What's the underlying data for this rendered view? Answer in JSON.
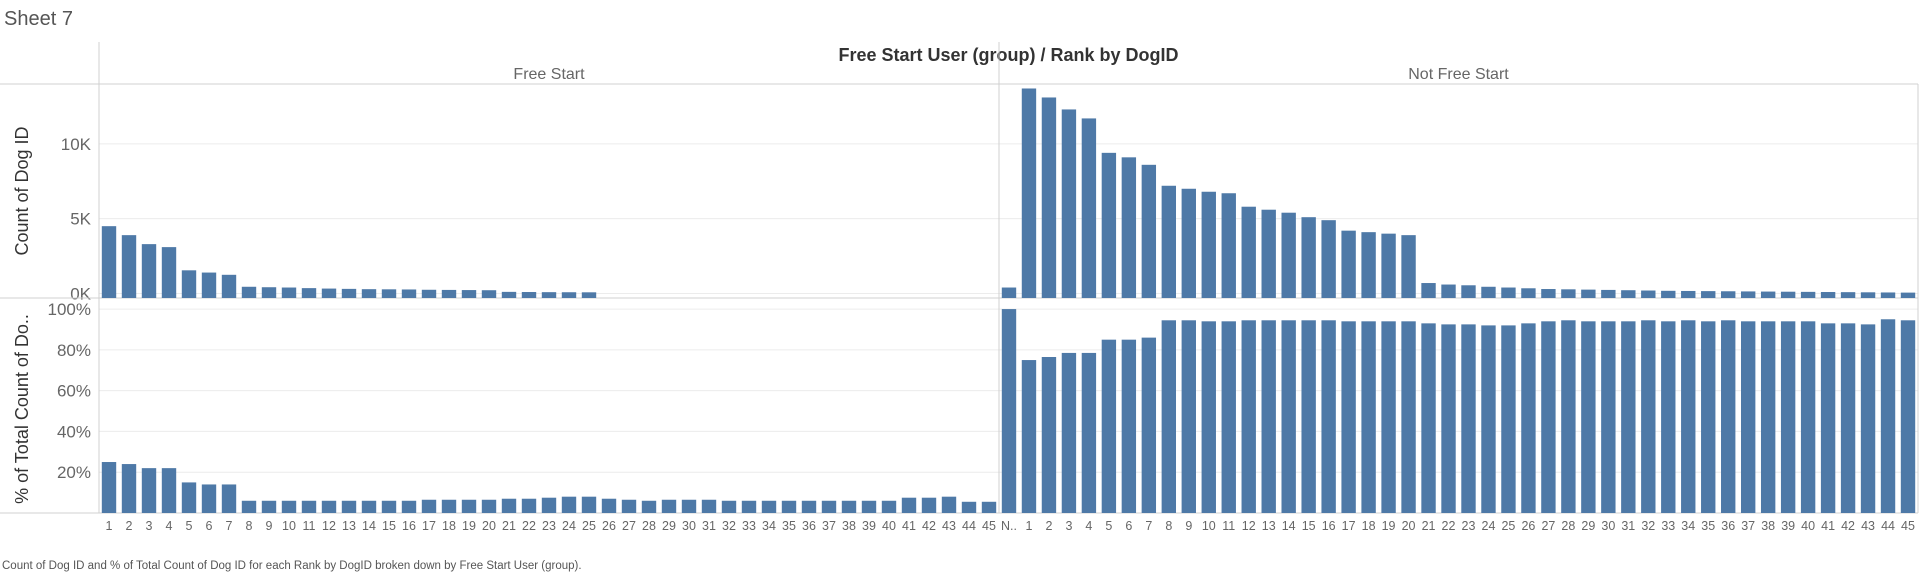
{
  "sheet": {
    "title": "Sheet 7"
  },
  "caption": "Count of Dog ID and % of Total Count of Dog ID for each Rank by DogID broken down by Free Start User (group).",
  "chart_data": {
    "type": "bar",
    "title": "Free Start User (group)  /  Rank by DogID",
    "panels": [
      "Free Start",
      "Not Free Start"
    ],
    "color": "#4e79a7",
    "measures": [
      {
        "name": "Count of Dog ID",
        "ylabel": "Count of Dog ID",
        "ylim": [
          -300,
          14000
        ],
        "ticks": [
          0,
          5000,
          10000
        ],
        "tick_labels": [
          "0K",
          "5K",
          "10K"
        ]
      },
      {
        "name": "% of Total Count of Dog ID",
        "ylabel": "% of Total Count of Do..",
        "ylim": [
          0,
          102
        ],
        "ticks": [
          20,
          40,
          60,
          80,
          100
        ],
        "tick_labels": [
          "20%",
          "40%",
          "60%",
          "80%",
          "100%"
        ]
      }
    ],
    "series": [
      {
        "name": "Free Start",
        "categories": [
          "1",
          "2",
          "3",
          "4",
          "5",
          "6",
          "7",
          "8",
          "9",
          "10",
          "11",
          "12",
          "13",
          "14",
          "15",
          "16",
          "17",
          "18",
          "19",
          "20",
          "21",
          "22",
          "23",
          "24",
          "25",
          "26",
          "27",
          "28",
          "29",
          "30",
          "31",
          "32",
          "33",
          "34",
          "35",
          "36",
          "37",
          "38",
          "39",
          "40",
          "41",
          "42",
          "43",
          "44",
          "45"
        ],
        "count": [
          4500,
          3900,
          3300,
          3100,
          1550,
          1400,
          1250,
          450,
          420,
          400,
          360,
          330,
          310,
          290,
          280,
          270,
          250,
          240,
          230,
          220,
          110,
          100,
          90,
          85,
          80,
          null,
          null,
          null,
          null,
          null,
          null,
          null,
          null,
          null,
          null,
          null,
          null,
          null,
          null,
          null,
          null,
          null,
          null,
          null,
          null
        ],
        "pct": [
          25,
          24,
          22,
          22,
          15,
          14,
          14,
          6,
          6,
          6,
          6,
          6,
          6,
          6,
          6,
          6,
          6.5,
          6.5,
          6.5,
          6.5,
          7,
          7,
          7.5,
          8,
          8,
          7,
          6.5,
          6,
          6.5,
          6.5,
          6.5,
          6,
          6,
          6,
          6,
          6,
          6,
          6,
          6,
          6,
          7.5,
          7.5,
          8,
          5.5,
          5.5
        ]
      },
      {
        "name": "Not Free Start",
        "categories": [
          "N..",
          "1",
          "2",
          "3",
          "4",
          "5",
          "6",
          "7",
          "8",
          "9",
          "10",
          "11",
          "12",
          "13",
          "14",
          "15",
          "16",
          "17",
          "18",
          "19",
          "20",
          "21",
          "22",
          "23",
          "24",
          "25",
          "26",
          "27",
          "28",
          "29",
          "30",
          "31",
          "32",
          "33",
          "34",
          "35",
          "36",
          "37",
          "38",
          "39",
          "40",
          "41",
          "42",
          "43",
          "44",
          "45"
        ],
        "count": [
          400,
          13700,
          13100,
          12300,
          11700,
          9400,
          9100,
          8600,
          7200,
          7000,
          6800,
          6700,
          5800,
          5600,
          5400,
          5100,
          4900,
          4200,
          4100,
          4000,
          3900,
          700,
          600,
          550,
          450,
          400,
          350,
          300,
          280,
          260,
          240,
          220,
          200,
          180,
          170,
          160,
          150,
          140,
          130,
          120,
          110,
          100,
          90,
          80,
          70,
          60
        ],
        "pct": [
          100,
          75,
          76.5,
          78.5,
          78.5,
          85,
          85,
          86,
          94.5,
          94.5,
          94,
          94,
          94.5,
          94.5,
          94.5,
          94.5,
          94.5,
          94,
          94,
          94,
          94,
          93,
          92.5,
          92.5,
          92,
          92,
          93,
          94,
          94.5,
          94,
          94,
          94,
          94.5,
          94,
          94.5,
          94,
          94.5,
          94,
          94,
          94,
          94,
          93,
          93,
          92.5,
          95,
          94.5
        ]
      }
    ]
  }
}
